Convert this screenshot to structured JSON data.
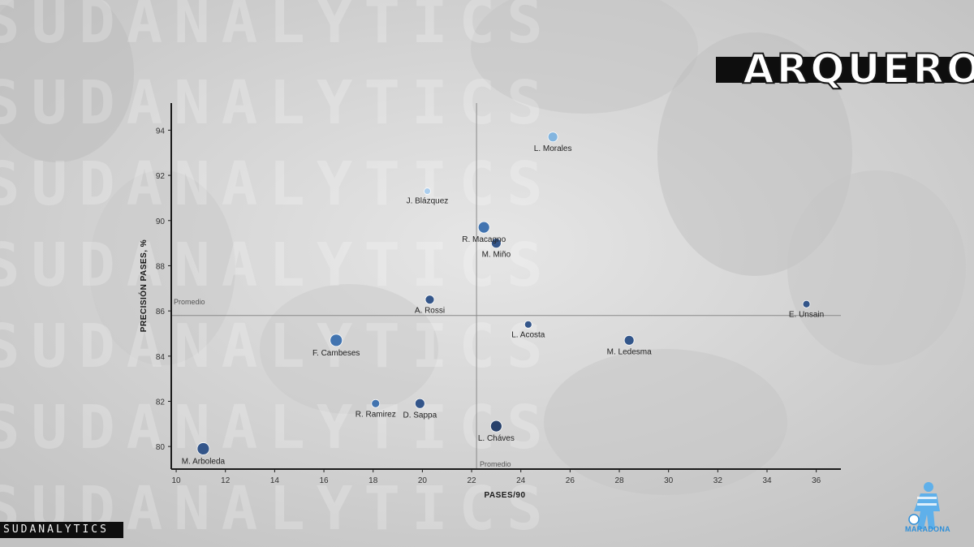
{
  "header": {
    "title": "ARQUEROS"
  },
  "brand": {
    "name": "SUDANALYTICS",
    "watermark": "SUDANALYTICS",
    "logo_text": "MARADONA"
  },
  "colors": {
    "axis": "#1a1a1a",
    "mean_line": "#8a8a8a",
    "label": "#222222",
    "points": [
      "#7fb3e0",
      "#a9cdee",
      "#3a6fae",
      "#2b4f86",
      "#1f3a66"
    ]
  },
  "chart_data": {
    "type": "scatter",
    "xlabel": "PASES/90",
    "ylabel": "PRECISIÓN PASES, %",
    "xlim": [
      9.8,
      37
    ],
    "ylim": [
      79,
      95.2
    ],
    "xticks": [
      10,
      12,
      14,
      16,
      18,
      20,
      22,
      24,
      26,
      28,
      30,
      32,
      34,
      36
    ],
    "yticks": [
      80,
      82,
      84,
      86,
      88,
      90,
      92,
      94
    ],
    "mean_x": {
      "value": 22.2,
      "label": "Promedio"
    },
    "mean_y": {
      "value": 85.8,
      "label": "Promedio"
    },
    "grid": false,
    "points": [
      {
        "name": "L. Morales",
        "x": 25.3,
        "y": 93.7,
        "color": "#7fb3e0",
        "r": 6
      },
      {
        "name": "J. Blázquez",
        "x": 20.2,
        "y": 91.3,
        "color": "#a9cdee",
        "r": 4
      },
      {
        "name": "R. Macagno",
        "x": 22.5,
        "y": 89.7,
        "color": "#3a6fae",
        "r": 7
      },
      {
        "name": "M. Miño",
        "x": 23.0,
        "y": 89.0,
        "color": "#2b4f86",
        "r": 6
      },
      {
        "name": "A. Rossi",
        "x": 20.3,
        "y": 86.5,
        "color": "#2b4f86",
        "r": 5.5
      },
      {
        "name": "E. Unsain",
        "x": 35.6,
        "y": 86.3,
        "color": "#2b4f86",
        "r": 4.5
      },
      {
        "name": "L. Acosta",
        "x": 24.3,
        "y": 85.4,
        "color": "#2b4f86",
        "r": 4.5
      },
      {
        "name": "F. Cambeses",
        "x": 16.5,
        "y": 84.7,
        "color": "#3a6fae",
        "r": 7.5
      },
      {
        "name": "M. Ledesma",
        "x": 28.4,
        "y": 84.7,
        "color": "#2b4f86",
        "r": 6
      },
      {
        "name": "R. Ramirez",
        "x": 18.1,
        "y": 81.9,
        "color": "#3a6fae",
        "r": 5
      },
      {
        "name": "D. Sappa",
        "x": 19.9,
        "y": 81.9,
        "color": "#2b4f86",
        "r": 6
      },
      {
        "name": "L. Cháves",
        "x": 23.0,
        "y": 80.9,
        "color": "#1f3a66",
        "r": 7
      },
      {
        "name": "M. Arboleda",
        "x": 11.1,
        "y": 79.9,
        "color": "#2b4f86",
        "r": 7.5
      }
    ]
  }
}
